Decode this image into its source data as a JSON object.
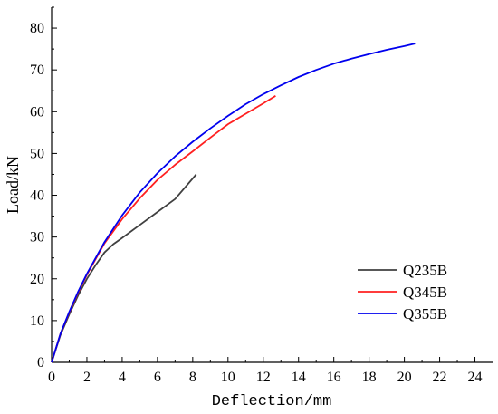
{
  "chart_data": {
    "type": "line",
    "xlabel": "Deflection/mm",
    "ylabel": "Load/kN",
    "xlim": [
      0,
      25
    ],
    "ylim": [
      0,
      85
    ],
    "x_ticks": [
      0,
      2,
      4,
      6,
      8,
      10,
      12,
      14,
      16,
      18,
      20,
      22,
      24
    ],
    "y_ticks": [
      0,
      10,
      20,
      30,
      40,
      50,
      60,
      70,
      80
    ],
    "grid": false,
    "legend_position": "bottom-right",
    "series": [
      {
        "name": "Q235B",
        "color": "#404040",
        "points": [
          [
            0,
            0
          ],
          [
            0.5,
            6.5
          ],
          [
            1,
            11.5
          ],
          [
            1.5,
            16
          ],
          [
            2,
            20
          ],
          [
            2.5,
            23.3
          ],
          [
            3,
            26.3
          ],
          [
            3.5,
            28.3
          ],
          [
            4,
            29.8
          ],
          [
            5,
            32.9
          ],
          [
            6,
            36
          ],
          [
            7,
            39.1
          ],
          [
            8.2,
            45
          ]
        ]
      },
      {
        "name": "Q345B",
        "color": "#ff2020",
        "points": [
          [
            0,
            0
          ],
          [
            0.5,
            6.8
          ],
          [
            1,
            12
          ],
          [
            1.5,
            16.7
          ],
          [
            2,
            21
          ],
          [
            3,
            28.5
          ],
          [
            4,
            34.3
          ],
          [
            5,
            39.3
          ],
          [
            6,
            43.7
          ],
          [
            7,
            47.3
          ],
          [
            8,
            50.5
          ],
          [
            9,
            53.8
          ],
          [
            10,
            57
          ],
          [
            11,
            59.5
          ],
          [
            12,
            62
          ],
          [
            12.7,
            63.8
          ]
        ]
      },
      {
        "name": "Q355B",
        "color": "#0000ee",
        "points": [
          [
            0,
            0
          ],
          [
            0.5,
            6.8
          ],
          [
            1,
            12.1
          ],
          [
            1.5,
            16.9
          ],
          [
            2,
            21.2
          ],
          [
            3,
            28.8
          ],
          [
            4,
            35.2
          ],
          [
            5,
            40.7
          ],
          [
            6,
            45.3
          ],
          [
            7,
            49.3
          ],
          [
            8,
            52.8
          ],
          [
            9,
            56
          ],
          [
            10,
            59
          ],
          [
            11,
            61.8
          ],
          [
            12,
            64.2
          ],
          [
            13,
            66.3
          ],
          [
            14,
            68.3
          ],
          [
            15,
            70
          ],
          [
            16,
            71.5
          ],
          [
            17,
            72.7
          ],
          [
            18,
            73.8
          ],
          [
            19,
            74.8
          ],
          [
            20,
            75.7
          ],
          [
            20.6,
            76.3
          ]
        ]
      }
    ]
  }
}
